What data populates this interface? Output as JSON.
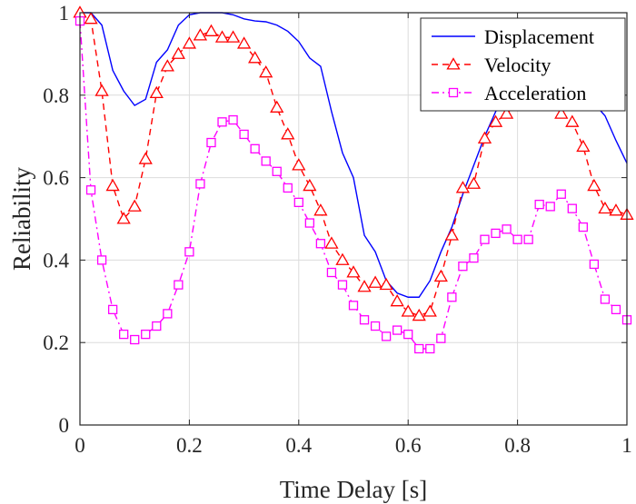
{
  "chart_data": {
    "type": "line",
    "title": "",
    "xlabel": "Time Delay [s]",
    "ylabel": "Reliability",
    "xlim": [
      0,
      1
    ],
    "ylim": [
      0,
      1
    ],
    "xticks": [
      "0",
      "0.2",
      "0.4",
      "0.6",
      "0.8",
      "1"
    ],
    "yticks": [
      "0",
      "0.2",
      "0.4",
      "0.6",
      "0.8",
      "1"
    ],
    "grid": true,
    "legend_position": "top-right",
    "series": [
      {
        "name": "Displacement",
        "color": "#0000ff",
        "line_style": "solid",
        "marker": "none",
        "x": [
          0,
          0.02,
          0.04,
          0.06,
          0.08,
          0.1,
          0.12,
          0.14,
          0.16,
          0.18,
          0.2,
          0.22,
          0.24,
          0.26,
          0.28,
          0.3,
          0.32,
          0.34,
          0.36,
          0.38,
          0.4,
          0.42,
          0.44,
          0.46,
          0.48,
          0.5,
          0.52,
          0.54,
          0.56,
          0.58,
          0.6,
          0.62,
          0.64,
          0.66,
          0.68,
          0.7,
          0.72,
          0.74,
          0.76,
          0.78,
          0.8,
          0.82,
          0.84,
          0.86,
          0.88,
          0.9,
          0.92,
          0.94,
          0.96,
          0.98,
          1.0
        ],
        "y": [
          1.0,
          1.0,
          0.97,
          0.86,
          0.81,
          0.775,
          0.79,
          0.88,
          0.91,
          0.97,
          0.995,
          1.0,
          1.0,
          1.0,
          0.995,
          0.985,
          0.98,
          0.978,
          0.97,
          0.955,
          0.93,
          0.89,
          0.87,
          0.76,
          0.66,
          0.6,
          0.46,
          0.42,
          0.35,
          0.32,
          0.31,
          0.31,
          0.35,
          0.42,
          0.48,
          0.56,
          0.63,
          0.7,
          0.76,
          0.8,
          0.84,
          0.85,
          0.86,
          0.86,
          0.84,
          0.8,
          0.78,
          0.78,
          0.75,
          0.69,
          0.635
        ]
      },
      {
        "name": "Velocity",
        "color": "#ff0000",
        "line_style": "dashed",
        "marker": "triangle",
        "x": [
          0,
          0.02,
          0.04,
          0.06,
          0.08,
          0.1,
          0.12,
          0.14,
          0.16,
          0.18,
          0.2,
          0.22,
          0.24,
          0.26,
          0.28,
          0.3,
          0.32,
          0.34,
          0.36,
          0.38,
          0.4,
          0.42,
          0.44,
          0.46,
          0.48,
          0.5,
          0.52,
          0.54,
          0.56,
          0.58,
          0.6,
          0.62,
          0.64,
          0.66,
          0.68,
          0.7,
          0.72,
          0.74,
          0.76,
          0.78,
          0.8,
          0.82,
          0.84,
          0.86,
          0.88,
          0.9,
          0.92,
          0.94,
          0.96,
          0.98,
          1.0
        ],
        "y": [
          1.0,
          0.985,
          0.81,
          0.58,
          0.5,
          0.53,
          0.645,
          0.805,
          0.87,
          0.9,
          0.925,
          0.945,
          0.955,
          0.94,
          0.94,
          0.925,
          0.89,
          0.855,
          0.77,
          0.705,
          0.63,
          0.58,
          0.52,
          0.44,
          0.4,
          0.37,
          0.335,
          0.345,
          0.34,
          0.3,
          0.275,
          0.265,
          0.275,
          0.36,
          0.46,
          0.575,
          0.585,
          0.695,
          0.735,
          0.755,
          0.78,
          0.8,
          0.795,
          0.78,
          0.755,
          0.735,
          0.675,
          0.58,
          0.525,
          0.52,
          0.51
        ]
      },
      {
        "name": "Acceleration",
        "color": "#ff00ff",
        "line_style": "dash-dot",
        "marker": "square",
        "x": [
          0,
          0.02,
          0.04,
          0.06,
          0.08,
          0.1,
          0.12,
          0.14,
          0.16,
          0.18,
          0.2,
          0.22,
          0.24,
          0.26,
          0.28,
          0.3,
          0.32,
          0.34,
          0.36,
          0.38,
          0.4,
          0.42,
          0.44,
          0.46,
          0.48,
          0.5,
          0.52,
          0.54,
          0.56,
          0.58,
          0.6,
          0.62,
          0.64,
          0.66,
          0.68,
          0.7,
          0.72,
          0.74,
          0.76,
          0.78,
          0.8,
          0.82,
          0.84,
          0.86,
          0.88,
          0.9,
          0.92,
          0.94,
          0.96,
          0.98,
          1.0
        ],
        "y": [
          0.98,
          0.57,
          0.4,
          0.28,
          0.22,
          0.207,
          0.22,
          0.24,
          0.27,
          0.34,
          0.42,
          0.585,
          0.685,
          0.735,
          0.74,
          0.705,
          0.67,
          0.64,
          0.615,
          0.575,
          0.54,
          0.49,
          0.44,
          0.37,
          0.34,
          0.29,
          0.255,
          0.24,
          0.215,
          0.23,
          0.22,
          0.185,
          0.185,
          0.21,
          0.31,
          0.385,
          0.405,
          0.45,
          0.465,
          0.475,
          0.45,
          0.45,
          0.535,
          0.53,
          0.56,
          0.525,
          0.48,
          0.39,
          0.305,
          0.28,
          0.255
        ]
      }
    ]
  }
}
